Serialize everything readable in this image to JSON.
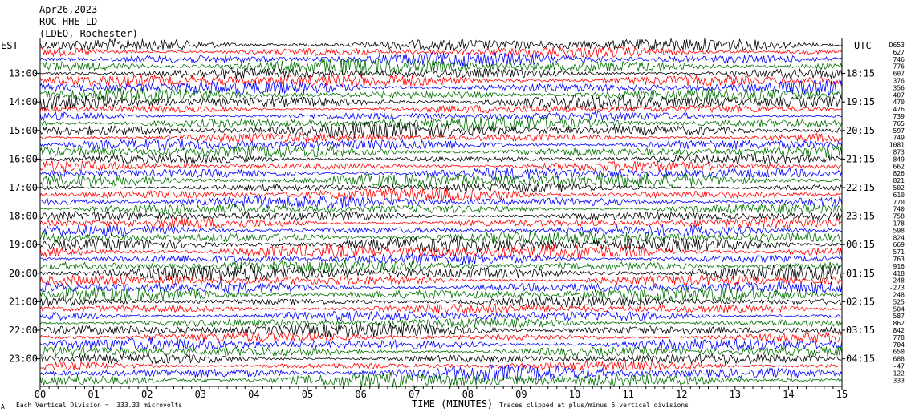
{
  "header": {
    "date": "Apr26,2023",
    "station": "ROC HHE LD --",
    "network": "(LDEO, Rochester)"
  },
  "left_zone_label": "EST",
  "right_zone_label": "UTC",
  "footer": {
    "scale_note": "Each Vertical Division =  333.33 microvolts",
    "axis_title": "TIME (MINUTES)",
    "clip_note": "Traces clipped at plus/minus 5 vertical divisions",
    "corner_mark": "A"
  },
  "chart_data": {
    "type": "line",
    "title": "",
    "xlabel": "TIME (MINUTES)",
    "xlim": [
      0,
      15
    ],
    "x_ticks": [
      "00",
      "01",
      "02",
      "03",
      "04",
      "05",
      "06",
      "07",
      "08",
      "09",
      "10",
      "11",
      "12",
      "13",
      "14",
      "15"
    ],
    "est_hour_labels": [
      "13:00",
      "14:00",
      "15:00",
      "16:00",
      "17:00",
      "18:00",
      "19:00",
      "20:00",
      "21:00",
      "22:00",
      "23:00"
    ],
    "utc_hour_labels": [
      "18:15",
      "19:15",
      "20:15",
      "21:15",
      "22:15",
      "23:15",
      "00:15",
      "01:15",
      "02:15",
      "03:15",
      "04:15"
    ],
    "trace_colors": [
      "#000000",
      "#ff0000",
      "#0000ff",
      "#007000"
    ],
    "trace_count": 48,
    "trace_scale_values": [
      "D653",
      "627",
      "746",
      "776",
      "607",
      "376",
      "356",
      "407",
      "470",
      "476",
      "739",
      "765",
      "597",
      "749",
      "1081",
      "873",
      "849",
      "662",
      "826",
      "821",
      "502",
      "610",
      "770",
      "740",
      "758",
      "178",
      "598",
      "824",
      "669",
      "571",
      "763",
      "916",
      "418",
      "248",
      "-273",
      "248",
      "525",
      "504",
      "587",
      "862",
      "842",
      "778",
      "704",
      "650",
      "688",
      "-47",
      "-122",
      "333"
    ]
  }
}
